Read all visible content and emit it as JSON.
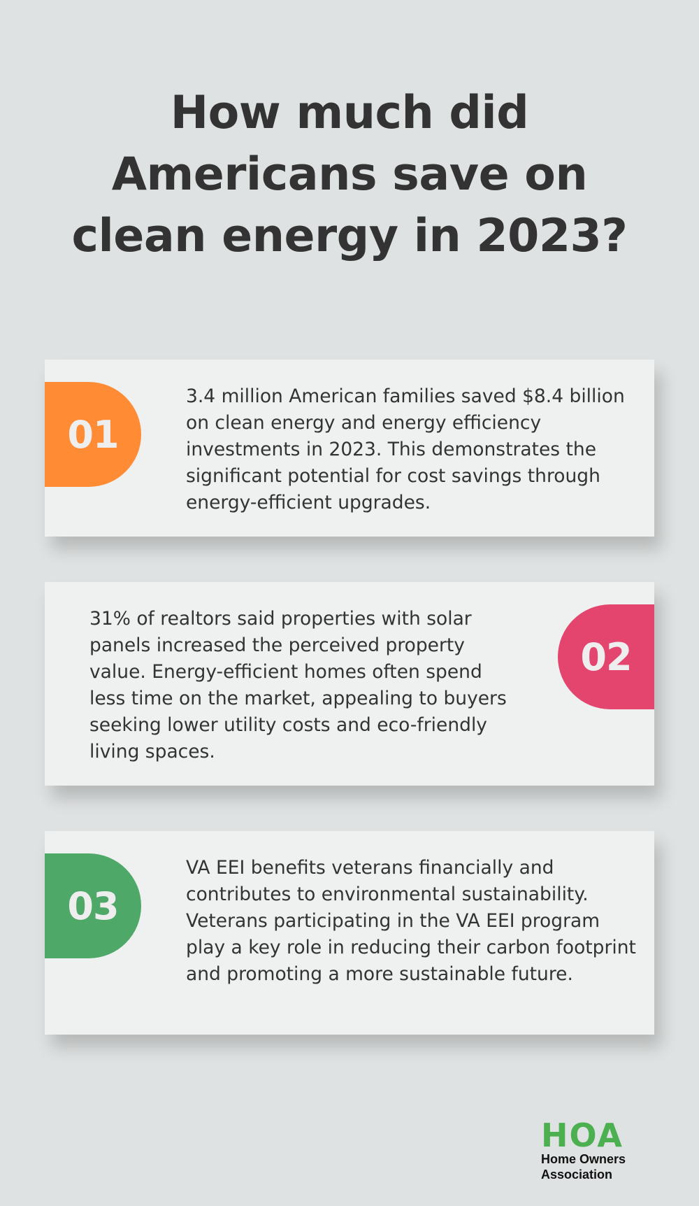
{
  "title": "How much did Americans save on clean energy in 2023?",
  "colors": {
    "background": "#dfe2e2",
    "card": "#eff1f0",
    "orange": "#ff8c35",
    "pink": "#e4456f",
    "green": "#4ea868",
    "logo_green": "#4caf50"
  },
  "items": [
    {
      "number": "01",
      "text": "3.4 million American families saved $8.4 billion on clean energy and energy efficiency investments in 2023. This demonstrates the significant potential for cost savings through energy-efficient upgrades."
    },
    {
      "number": "02",
      "text": "31% of realtors said properties with solar panels increased the perceived property value. Energy-efficient homes often spend less time on the market, appealing to buyers seeking lower utility costs and eco-friendly living spaces."
    },
    {
      "number": "03",
      "text": "VA EEI benefits veterans financially and contributes to environmental sustainability. Veterans participating in the VA EEI program play a key role in reducing their carbon footprint and promoting a more sustainable future."
    }
  ],
  "logo": {
    "mark": "HOA",
    "line1": "Home Owners",
    "line2": "Association"
  }
}
